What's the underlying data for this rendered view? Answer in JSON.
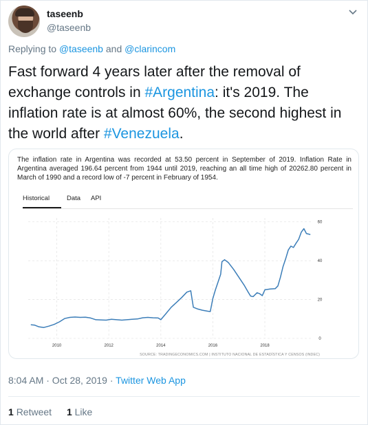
{
  "user": {
    "name": "taseenb",
    "handle": "@taseenb"
  },
  "reply": {
    "prefix": "Replying to",
    "user1": "@taseenb",
    "joiner": "and",
    "user2": "@clarincom"
  },
  "tweet": {
    "text_part1": "Fast forward 4 years later after the removal of exchange controls in ",
    "hashtag1": "#Argentina",
    "text_part2": ": it's 2019. The inflation rate is at almost 60%, the second highest in the world after ",
    "hashtag2": "#Venezuela",
    "text_part3": "."
  },
  "card": {
    "summary": "The inflation rate in Argentina was recorded at 53.50 percent in September of 2019. Inflation Rate in Argentina averaged 196.64 percent from 1944 until 2019, reaching an all time high of 20262.80 percent in March of 1990 and a record low of -7 percent in February of 1954.",
    "tabs": [
      "Historical",
      "Data",
      "API"
    ],
    "active_tab": "Historical",
    "source": "SOURCE: TRADINGECONOMICS.COM | INSTITUTO NACIONAL DE ESTADÍSTICA Y CENSOS (INDEC)"
  },
  "chart_data": {
    "type": "line",
    "title": "",
    "xlabel": "",
    "ylabel": "",
    "x_ticks": [
      "2010",
      "2012",
      "2014",
      "2016",
      "2018"
    ],
    "y_ticks": [
      "0",
      "20",
      "40",
      "60"
    ],
    "xlim": [
      2008.9,
      2019.85
    ],
    "ylim": [
      0,
      62
    ],
    "grid": true,
    "line_color": "#3b7db8",
    "series": [
      {
        "x": [
          2009.0,
          2009.15,
          2009.3,
          2009.5,
          2009.7,
          2009.9,
          2010.1,
          2010.3,
          2010.5,
          2010.7,
          2010.9,
          2011.1,
          2011.3,
          2011.5,
          2011.7,
          2011.9,
          2012.1,
          2012.3,
          2012.5,
          2012.7,
          2012.9,
          2013.1,
          2013.3,
          2013.5,
          2013.7,
          2013.9,
          2014.0,
          2014.2,
          2014.4,
          2014.6,
          2014.8,
          2015.0,
          2015.15,
          2015.25,
          2015.4,
          2015.6,
          2015.8,
          2015.9,
          2016.0,
          2016.1,
          2016.2,
          2016.3,
          2016.35,
          2016.45,
          2016.6,
          2016.8,
          2017.0,
          2017.2,
          2017.35,
          2017.45,
          2017.55,
          2017.7,
          2017.8,
          2017.9,
          2018.0,
          2018.2,
          2018.4,
          2018.5,
          2018.6,
          2018.7,
          2018.8,
          2018.9,
          2019.0,
          2019.1,
          2019.2,
          2019.3,
          2019.4,
          2019.5,
          2019.6,
          2019.75
        ],
        "y": [
          7.0,
          6.8,
          6.0,
          5.6,
          6.3,
          7.2,
          8.5,
          10.2,
          10.8,
          11.0,
          10.8,
          10.9,
          10.5,
          9.6,
          9.5,
          9.4,
          9.8,
          9.6,
          9.4,
          9.6,
          9.8,
          10.0,
          10.6,
          10.8,
          10.6,
          10.5,
          9.6,
          12.8,
          16.0,
          18.5,
          21.0,
          23.8,
          24.5,
          16.0,
          15.2,
          14.5,
          14.0,
          13.8,
          20.5,
          25.0,
          29.0,
          33.0,
          39.5,
          40.5,
          39.0,
          35.5,
          31.5,
          27.5,
          24.0,
          21.8,
          21.5,
          23.5,
          23.0,
          22.0,
          25.0,
          25.4,
          25.6,
          27.0,
          31.5,
          37.0,
          41.0,
          45.5,
          47.5,
          46.8,
          49.0,
          51.0,
          54.7,
          56.5,
          54.0,
          53.5
        ]
      }
    ]
  },
  "meta": {
    "time": "8:04 AM · Oct 28, 2019 ·",
    "source_app": "Twitter Web App"
  },
  "stats": {
    "retweets_count": "1",
    "retweets_label": "Retweet",
    "likes_count": "1",
    "likes_label": "Like"
  }
}
